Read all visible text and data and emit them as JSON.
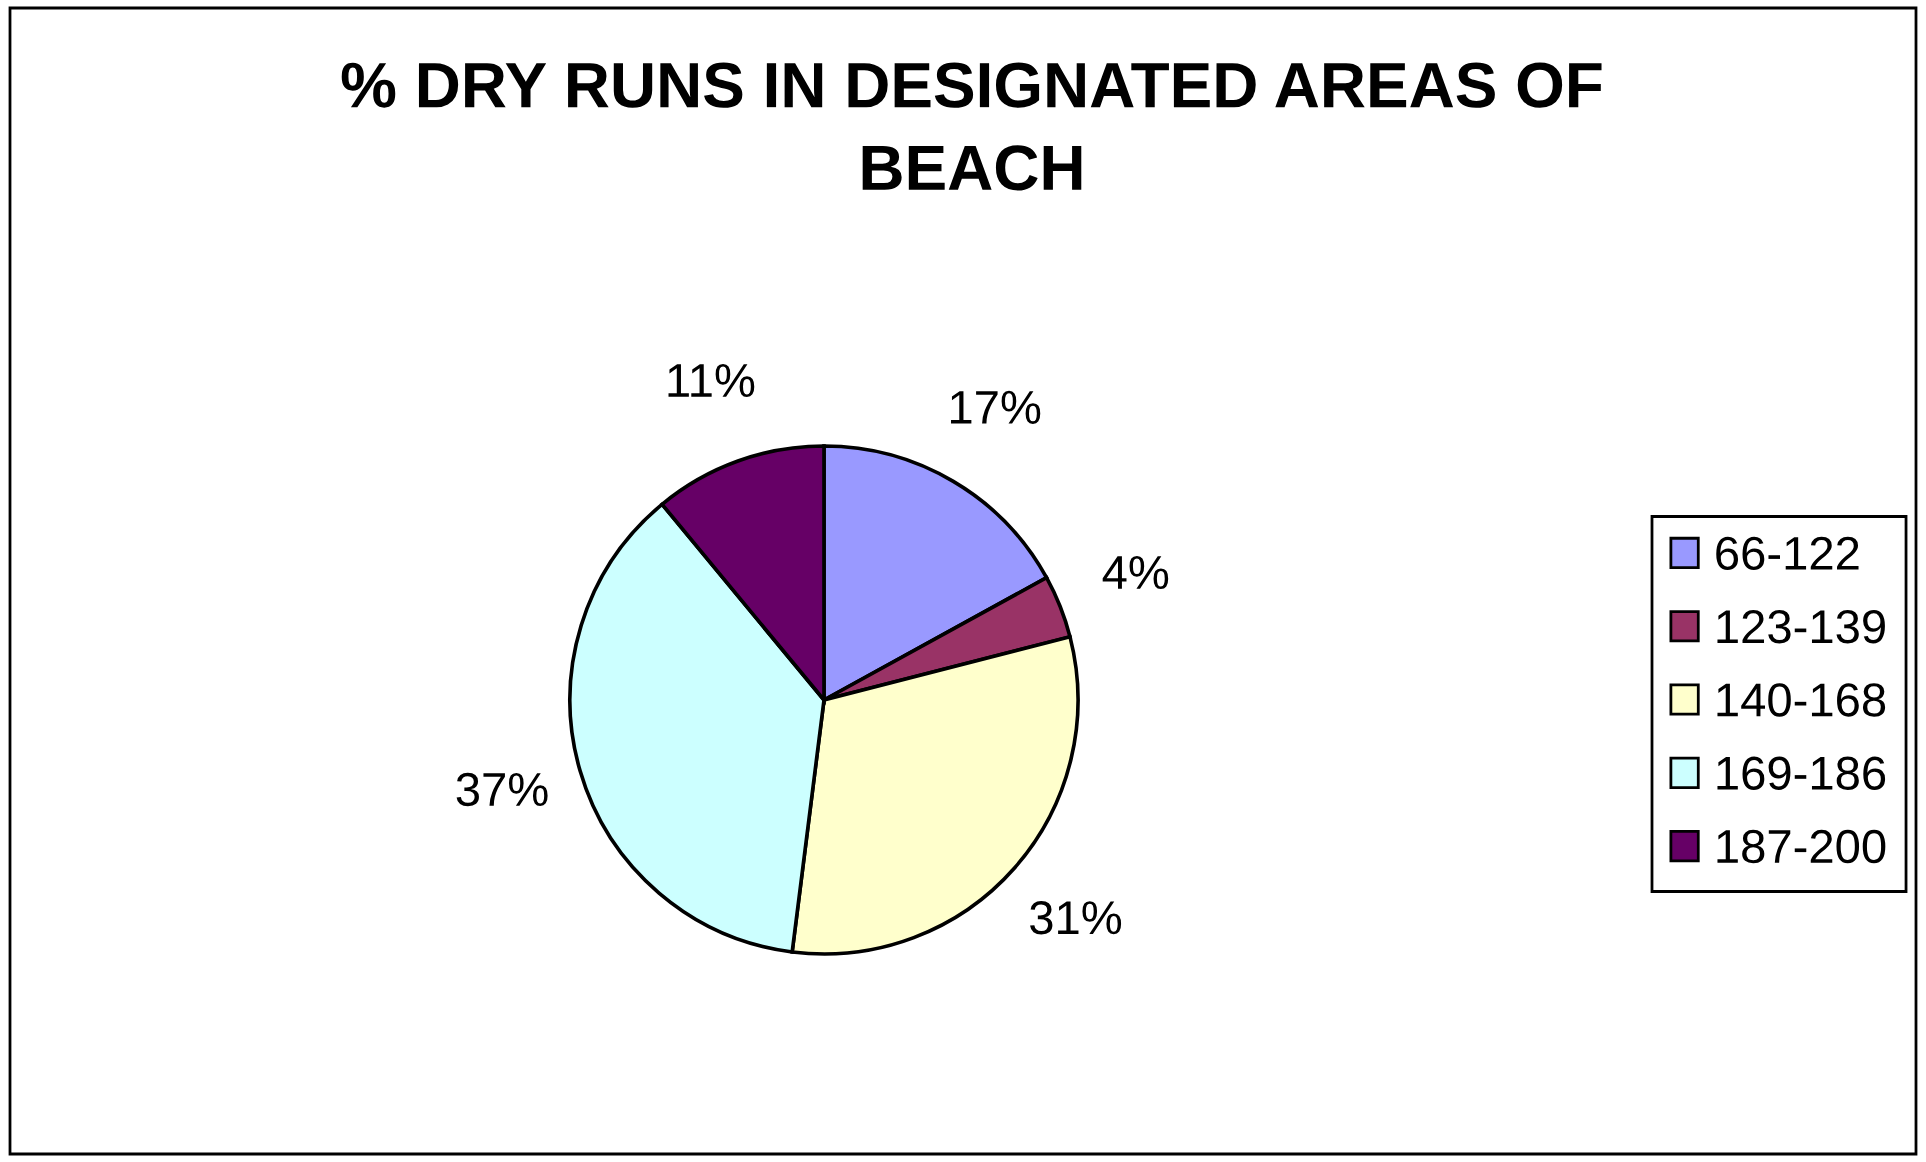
{
  "chart_data": {
    "type": "pie",
    "title": "% DRY RUNS IN DESIGNATED AREAS OF\nBEACH",
    "categories": [
      "66-122",
      "123-139",
      "140-168",
      "169-186",
      "187-200"
    ],
    "values": [
      17,
      4,
      31,
      37,
      11
    ],
    "colors": [
      "#9999ff",
      "#993366",
      "#ffffcc",
      "#ccffff",
      "#660066"
    ],
    "value_labels": [
      "17%",
      "4%",
      "31%",
      "37%",
      "11%"
    ],
    "legend": "right"
  }
}
